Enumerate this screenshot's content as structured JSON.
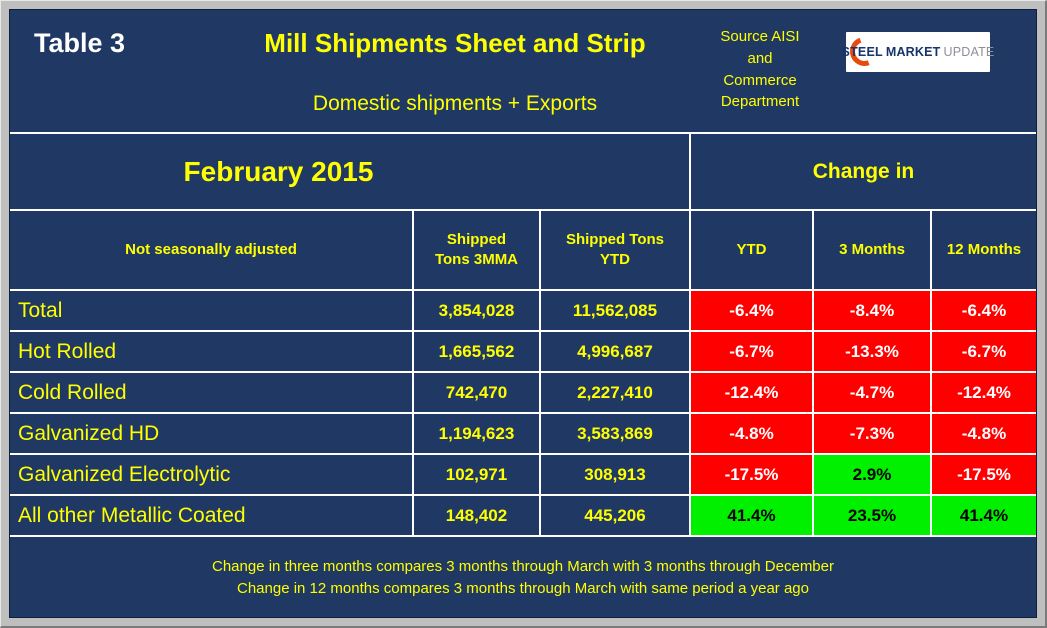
{
  "header": {
    "table_label": "Table 3",
    "title": "Mill Shipments Sheet and Strip",
    "subtitle": "Domestic shipments + Exports",
    "source": "Source AISI\nand\nCommerce\nDepartment"
  },
  "logo": {
    "steel": "STEEL",
    "market": "MARKET",
    "update": "UPDATE"
  },
  "period": "February 2015",
  "change_in_label": "Change in",
  "columns": {
    "label": "Not seasonally adjusted",
    "shipped_3mma": "Shipped\nTons 3MMA",
    "shipped_ytd": "Shipped Tons\nYTD",
    "ytd": "YTD",
    "m3": "3 Months",
    "m12": "12 Months"
  },
  "rows": [
    {
      "label": "Total",
      "tons_3mma": "3,854,028",
      "tons_ytd": "11,562,085",
      "changes": [
        {
          "value": "-6.4%",
          "state": "neg"
        },
        {
          "value": "-8.4%",
          "state": "neg"
        },
        {
          "value": "-6.4%",
          "state": "neg"
        }
      ]
    },
    {
      "label": "Hot Rolled",
      "tons_3mma": "1,665,562",
      "tons_ytd": "4,996,687",
      "changes": [
        {
          "value": "-6.7%",
          "state": "neg"
        },
        {
          "value": "-13.3%",
          "state": "neg"
        },
        {
          "value": "-6.7%",
          "state": "neg"
        }
      ]
    },
    {
      "label": "Cold Rolled",
      "tons_3mma": "742,470",
      "tons_ytd": "2,227,410",
      "changes": [
        {
          "value": "-12.4%",
          "state": "neg"
        },
        {
          "value": "-4.7%",
          "state": "neg"
        },
        {
          "value": "-12.4%",
          "state": "neg"
        }
      ]
    },
    {
      "label": "Galvanized HD",
      "tons_3mma": "1,194,623",
      "tons_ytd": "3,583,869",
      "changes": [
        {
          "value": "-4.8%",
          "state": "neg"
        },
        {
          "value": "-7.3%",
          "state": "neg"
        },
        {
          "value": "-4.8%",
          "state": "neg"
        }
      ]
    },
    {
      "label": "Galvanized Electrolytic",
      "tons_3mma": "102,971",
      "tons_ytd": "308,913",
      "changes": [
        {
          "value": "-17.5%",
          "state": "neg"
        },
        {
          "value": "2.9%",
          "state": "pos"
        },
        {
          "value": "-17.5%",
          "state": "neg"
        }
      ]
    },
    {
      "label": "All other Metallic Coated",
      "tons_3mma": "148,402",
      "tons_ytd": "445,206",
      "changes": [
        {
          "value": "41.4%",
          "state": "pos"
        },
        {
          "value": "23.5%",
          "state": "pos"
        },
        {
          "value": "41.4%",
          "state": "pos"
        }
      ]
    }
  ],
  "footnotes": [
    "Change in three months compares 3 months through March with 3 months through December",
    "Change in 12 months compares 3 months through March with same period a year ago"
  ],
  "colors": {
    "background_navy": "#1F3864",
    "grid_white": "#FFFFFF",
    "text_yellow": "#FFFF00",
    "negative_red": "#FF0000",
    "positive_green": "#00F000",
    "logo_orange": "#E8490F"
  },
  "chart_data": {
    "type": "table",
    "title": "Mill Shipments Sheet and Strip",
    "subtitle": "Domestic shipments + Exports",
    "period": "February 2015",
    "source": "Source AISI and Commerce Department",
    "columns": [
      "Not seasonally adjusted",
      "Shipped Tons 3MMA",
      "Shipped Tons YTD",
      "Change in YTD",
      "Change in 3 Months",
      "Change in 12 Months"
    ],
    "rows": [
      [
        "Total",
        3854028,
        11562085,
        -6.4,
        -8.4,
        -6.4
      ],
      [
        "Hot Rolled",
        1665562,
        4996687,
        -6.7,
        -13.3,
        -6.7
      ],
      [
        "Cold Rolled",
        742470,
        2227410,
        -12.4,
        -4.7,
        -12.4
      ],
      [
        "Galvanized HD",
        1194623,
        3583869,
        -4.8,
        -7.3,
        -4.8
      ],
      [
        "Galvanized Electrolytic",
        102971,
        308913,
        -17.5,
        2.9,
        -17.5
      ],
      [
        "All other Metallic Coated",
        148402,
        445206,
        41.4,
        23.5,
        41.4
      ]
    ],
    "notes": [
      "Change in three months compares 3 months through March with 3 months through December",
      "Change in 12 months compares 3 months through March with same period a year ago"
    ],
    "cell_color_rule": "negative change = red background white text, positive change = green background black text"
  }
}
